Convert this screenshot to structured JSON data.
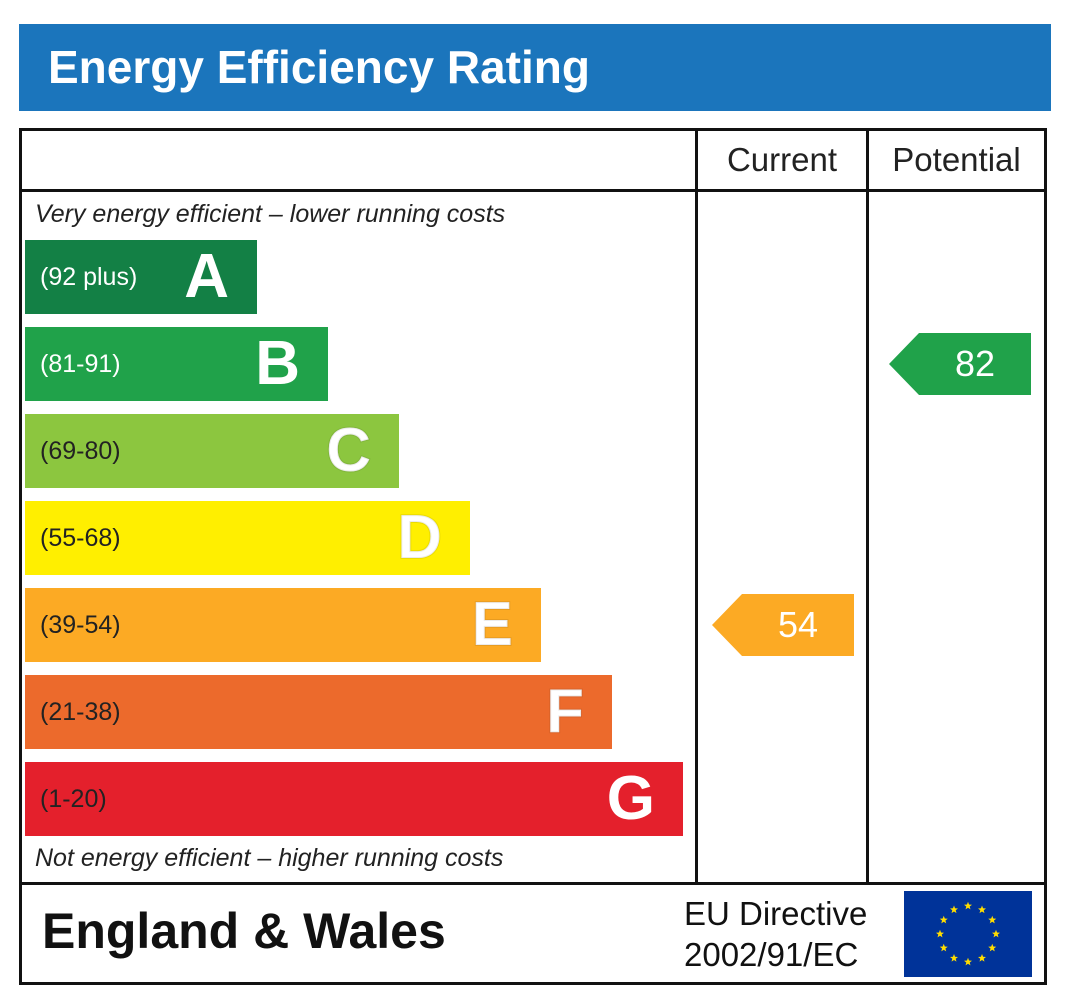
{
  "title": "Energy Efficiency Rating",
  "columns": {
    "current": "Current",
    "potential": "Potential"
  },
  "notes": {
    "top": "Very energy efficient – lower running costs",
    "bottom": "Not energy efficient – higher running costs"
  },
  "footer": {
    "country": "England & Wales",
    "directive_line1": "EU Directive",
    "directive_line2": "2002/91/EC"
  },
  "chart_data": {
    "type": "bar",
    "categories": [
      "A",
      "B",
      "C",
      "D",
      "E",
      "F",
      "G"
    ],
    "bands": [
      {
        "letter": "A",
        "range": "(92 plus)",
        "min": 92,
        "max": 100,
        "color": "#138045",
        "range_color": "#ffffff",
        "letter_outline": false
      },
      {
        "letter": "B",
        "range": "(81-91)",
        "min": 81,
        "max": 91,
        "color": "#20a24a",
        "range_color": "#ffffff",
        "letter_outline": false
      },
      {
        "letter": "C",
        "range": "(69-80)",
        "min": 69,
        "max": 80,
        "color": "#8cc63f",
        "range_color": "#222222",
        "letter_outline": true
      },
      {
        "letter": "D",
        "range": "(55-68)",
        "min": 55,
        "max": 68,
        "color": "#ffef00",
        "range_color": "#222222",
        "letter_outline": true
      },
      {
        "letter": "E",
        "range": "(39-54)",
        "min": 39,
        "max": 54,
        "color": "#fcaa24",
        "range_color": "#222222",
        "letter_outline": true
      },
      {
        "letter": "F",
        "range": "(21-38)",
        "min": 21,
        "max": 38,
        "color": "#ec6a2c",
        "range_color": "#222222",
        "letter_outline": true
      },
      {
        "letter": "G",
        "range": "(1-20)",
        "min": 1,
        "max": 20,
        "color": "#e4202c",
        "range_color": "#222222",
        "letter_outline": false
      }
    ],
    "series": [
      {
        "name": "Current",
        "value": 54,
        "band": "E",
        "color": "#fcaa24"
      },
      {
        "name": "Potential",
        "value": 82,
        "band": "B",
        "color": "#20a24a"
      }
    ]
  },
  "colors": {
    "title_bar": "#1b75bc",
    "eu_flag": "#003399",
    "eu_star": "#ffdd00"
  },
  "icons": {
    "eu_flag": "eu-flag-icon"
  }
}
